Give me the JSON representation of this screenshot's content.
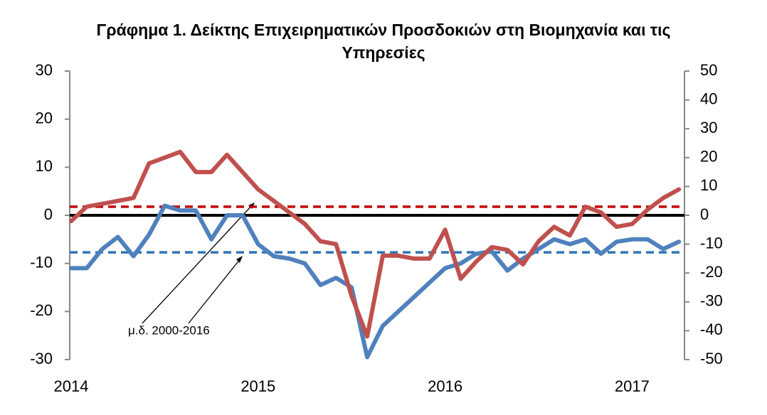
{
  "chart_data": {
    "type": "line",
    "title": "Γράφημα 1. Δείκτης Επιχειρηματικών Προσδοκιών στη Βιομηχανία και τις Υπηρεσίες",
    "annotation": "μ.δ. 2000-2016",
    "categories": [
      "2014",
      null,
      null,
      null,
      null,
      null,
      null,
      null,
      null,
      null,
      null,
      null,
      "2015",
      null,
      null,
      null,
      null,
      null,
      null,
      null,
      null,
      null,
      null,
      null,
      "2016",
      null,
      null,
      null,
      null,
      null,
      null,
      null,
      null,
      null,
      null,
      null,
      "2017",
      null,
      null,
      null
    ],
    "series": [
      {
        "color": "#4f81bd",
        "axis": "y",
        "values": [
          -11,
          -11,
          -7,
          -4.5,
          -8.5,
          -4,
          2,
          1,
          1,
          -5,
          0,
          0,
          -6,
          -8.5,
          -9,
          -10,
          -14.5,
          -13,
          -15,
          -29.5,
          -23,
          -20,
          -17,
          -14,
          -11,
          -10,
          -8,
          -7.5,
          -11.5,
          -9,
          -7,
          -5,
          -6,
          -5,
          -8,
          -5.5,
          -5,
          -5,
          -7,
          -5.5
        ]
      },
      {
        "color": "#c0504d",
        "axis": "y2",
        "values": [
          -2,
          3,
          4,
          5,
          6,
          18,
          20,
          22,
          15,
          15,
          21,
          15,
          9,
          5,
          1,
          -3,
          -9,
          -10,
          -28,
          -42,
          -14,
          -14,
          -15,
          -15,
          -5,
          -22,
          -16,
          -11,
          -12,
          -17,
          -9,
          -4,
          -7,
          3,
          1,
          -4,
          -3,
          2,
          6,
          9
        ]
      }
    ],
    "reference_lines": [
      {
        "value": -7.7,
        "axis": "y",
        "color": "#2e75b6"
      },
      {
        "value": 3,
        "axis": "y2",
        "color": "#c00000"
      }
    ],
    "ylim": [
      -30,
      30
    ],
    "yticks": [
      -30,
      -20,
      -10,
      0,
      10,
      20,
      30
    ],
    "y2lim": [
      -50,
      50
    ],
    "y2ticks": [
      -50,
      -40,
      -30,
      -20,
      -10,
      0,
      10,
      20,
      30,
      40,
      50
    ]
  }
}
